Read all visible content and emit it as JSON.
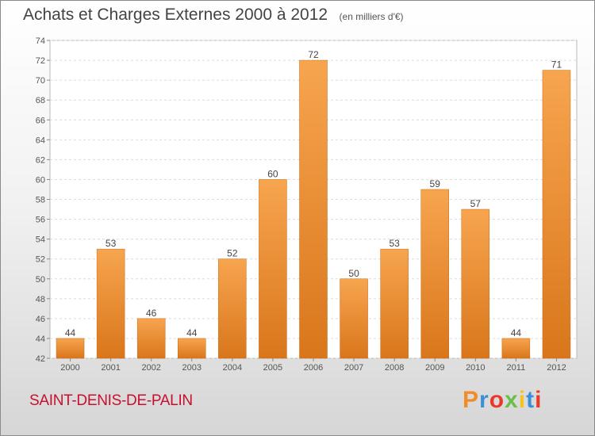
{
  "header": {
    "title": "Achats et Charges Externes 2000 à 2012",
    "unit": "(en milliers d'€)"
  },
  "footer": {
    "commune": "SAINT-DENIS-DE-PALIN",
    "logo_text": "Proxiti",
    "logo_colors": [
      "#f28c28",
      "#3a8fd6",
      "#e8392b",
      "#6abf4b",
      "#f7c41f",
      "#3a8fd6",
      "#e8392b"
    ]
  },
  "colors": {
    "bar_top": "#f7a54f",
    "bar_bottom": "#d9761b",
    "title": "#444444",
    "commune": "#c8102e"
  },
  "chart_data": {
    "type": "bar",
    "title": "Achats et Charges Externes 2000 à 2012",
    "subtitle": "(en milliers d'€)",
    "xlabel": "",
    "ylabel": "",
    "categories": [
      "2000",
      "2001",
      "2002",
      "2003",
      "2004",
      "2005",
      "2006",
      "2007",
      "2008",
      "2009",
      "2010",
      "2011",
      "2012"
    ],
    "values": [
      44,
      53,
      46,
      44,
      52,
      60,
      72,
      50,
      53,
      59,
      57,
      44,
      71
    ],
    "ylim": [
      42,
      74
    ],
    "yticks": [
      42,
      44,
      46,
      48,
      50,
      52,
      54,
      56,
      58,
      60,
      62,
      64,
      66,
      68,
      70,
      72,
      74
    ],
    "grid": true,
    "legend": "none"
  }
}
